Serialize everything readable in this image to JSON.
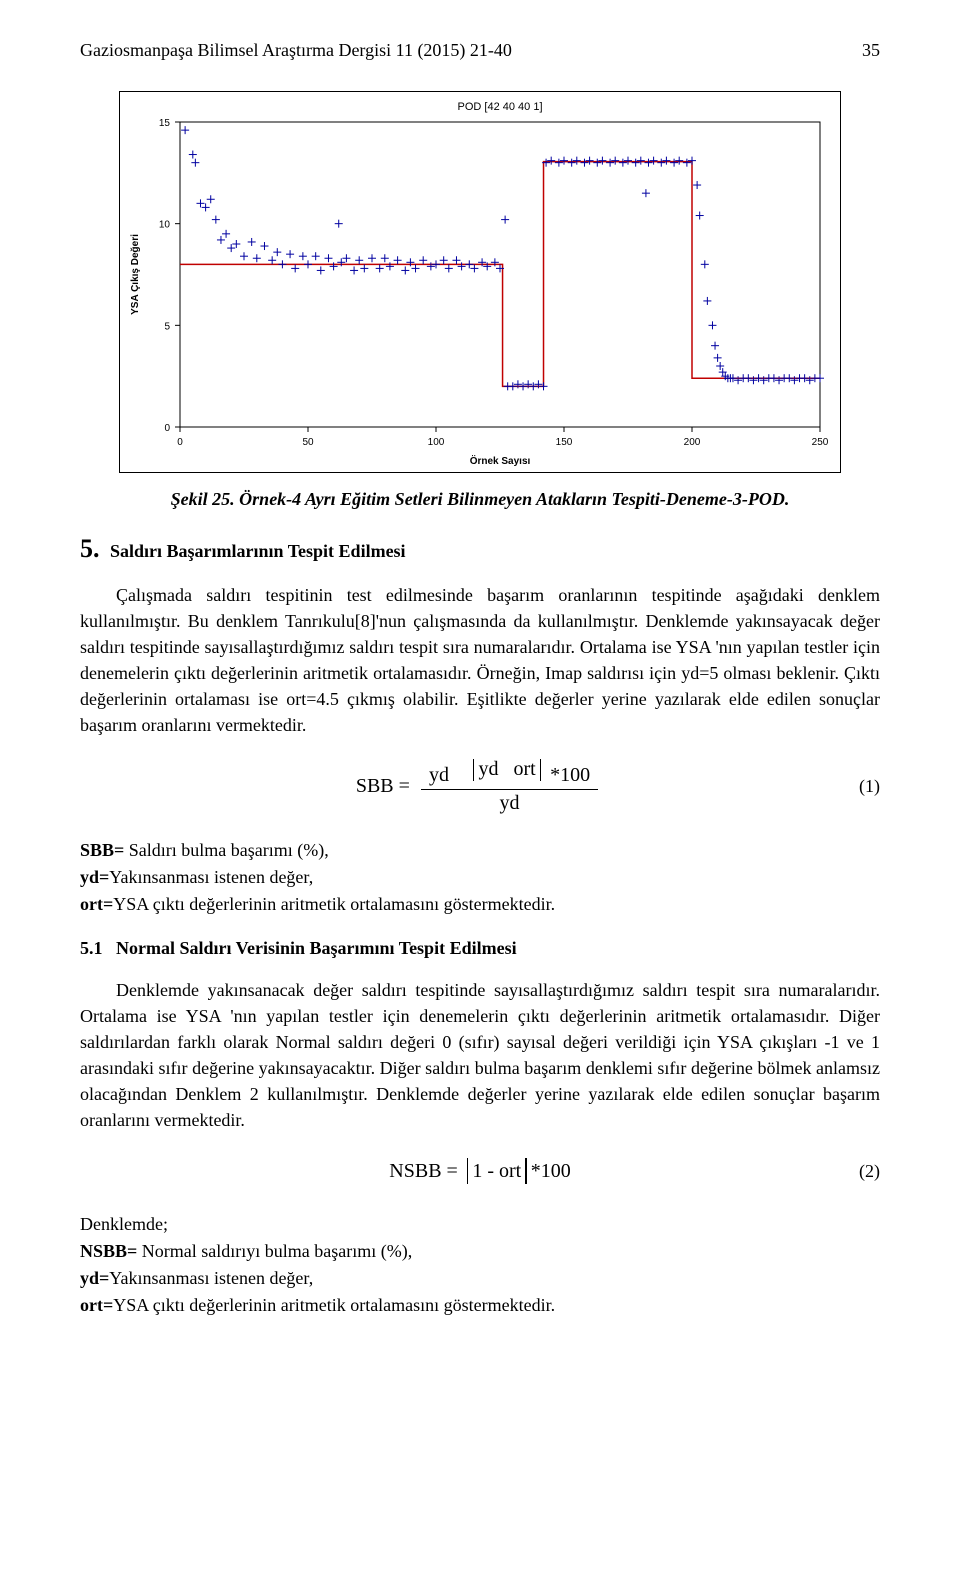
{
  "header": {
    "journal": "Gaziosmanpaşa Bilimsel Araştırma Dergisi 11 (2015) 21-40",
    "page_number": "35"
  },
  "chart": {
    "type": "scatter+step",
    "title": "POD [42 40 40 1]",
    "title_fontsize": 11,
    "xlabel": "Örnek Sayısı",
    "ylabel": "YSA Çıkış Değeri",
    "label_fontsize": 10,
    "xlim": [
      0,
      250
    ],
    "ylim": [
      0,
      15
    ],
    "xticks": [
      0,
      50,
      100,
      150,
      200,
      250
    ],
    "yticks": [
      0,
      5,
      10,
      15
    ],
    "background_color": "#ffffff",
    "axis_color": "#000000",
    "scatter_points": [
      [
        2,
        14.6
      ],
      [
        5,
        13.4
      ],
      [
        6,
        13.0
      ],
      [
        8,
        11.0
      ],
      [
        10,
        10.8
      ],
      [
        12,
        11.2
      ],
      [
        14,
        10.2
      ],
      [
        16,
        9.2
      ],
      [
        18,
        9.5
      ],
      [
        20,
        8.8
      ],
      [
        22,
        9.0
      ],
      [
        25,
        8.4
      ],
      [
        28,
        9.1
      ],
      [
        30,
        8.3
      ],
      [
        33,
        8.9
      ],
      [
        36,
        8.2
      ],
      [
        38,
        8.6
      ],
      [
        40,
        8.0
      ],
      [
        43,
        8.5
      ],
      [
        45,
        7.8
      ],
      [
        48,
        8.4
      ],
      [
        50,
        8.0
      ],
      [
        53,
        8.4
      ],
      [
        55,
        7.7
      ],
      [
        58,
        8.3
      ],
      [
        60,
        7.9
      ],
      [
        62,
        10.0
      ],
      [
        63,
        8.1
      ],
      [
        65,
        8.3
      ],
      [
        68,
        7.7
      ],
      [
        70,
        8.2
      ],
      [
        72,
        7.8
      ],
      [
        75,
        8.3
      ],
      [
        78,
        7.8
      ],
      [
        80,
        8.3
      ],
      [
        82,
        7.9
      ],
      [
        85,
        8.2
      ],
      [
        88,
        7.7
      ],
      [
        90,
        8.1
      ],
      [
        92,
        7.8
      ],
      [
        95,
        8.2
      ],
      [
        98,
        7.9
      ],
      [
        100,
        8.0
      ],
      [
        103,
        8.2
      ],
      [
        105,
        7.8
      ],
      [
        108,
        8.2
      ],
      [
        110,
        7.9
      ],
      [
        113,
        8.0
      ],
      [
        115,
        7.8
      ],
      [
        118,
        8.1
      ],
      [
        120,
        7.9
      ],
      [
        123,
        8.1
      ],
      [
        125,
        7.8
      ],
      [
        127,
        10.2
      ],
      [
        128,
        2.0
      ],
      [
        130,
        2.0
      ],
      [
        132,
        2.1
      ],
      [
        134,
        2.0
      ],
      [
        136,
        2.1
      ],
      [
        138,
        2.0
      ],
      [
        140,
        2.1
      ],
      [
        142,
        2.0
      ],
      [
        143,
        13.0
      ],
      [
        145,
        13.1
      ],
      [
        148,
        13.0
      ],
      [
        150,
        13.1
      ],
      [
        153,
        13.0
      ],
      [
        155,
        13.1
      ],
      [
        158,
        13.0
      ],
      [
        160,
        13.1
      ],
      [
        163,
        13.0
      ],
      [
        165,
        13.1
      ],
      [
        168,
        13.0
      ],
      [
        170,
        13.1
      ],
      [
        173,
        13.0
      ],
      [
        175,
        13.1
      ],
      [
        178,
        13.0
      ],
      [
        180,
        13.1
      ],
      [
        182,
        11.5
      ],
      [
        183,
        13.0
      ],
      [
        185,
        13.1
      ],
      [
        188,
        13.0
      ],
      [
        190,
        13.1
      ],
      [
        193,
        13.0
      ],
      [
        195,
        13.1
      ],
      [
        198,
        13.0
      ],
      [
        200,
        13.1
      ],
      [
        202,
        11.9
      ],
      [
        203,
        10.4
      ],
      [
        205,
        8.0
      ],
      [
        206,
        6.2
      ],
      [
        208,
        5.0
      ],
      [
        209,
        4.0
      ],
      [
        210,
        3.4
      ],
      [
        211,
        3.0
      ],
      [
        212,
        2.7
      ],
      [
        213,
        2.5
      ],
      [
        214,
        2.4
      ],
      [
        215,
        2.4
      ],
      [
        216,
        2.4
      ],
      [
        218,
        2.3
      ],
      [
        220,
        2.4
      ],
      [
        222,
        2.4
      ],
      [
        224,
        2.3
      ],
      [
        226,
        2.4
      ],
      [
        228,
        2.3
      ],
      [
        230,
        2.4
      ],
      [
        232,
        2.4
      ],
      [
        234,
        2.3
      ],
      [
        236,
        2.4
      ],
      [
        238,
        2.4
      ],
      [
        240,
        2.3
      ],
      [
        242,
        2.4
      ],
      [
        244,
        2.4
      ],
      [
        246,
        2.3
      ],
      [
        248,
        2.4
      ],
      [
        250,
        2.4
      ]
    ],
    "marker_color": "#0000a0",
    "marker_symbol": "+",
    "marker_size": 8,
    "step_line": [
      [
        0,
        8.0
      ],
      [
        126,
        8.0
      ],
      [
        126,
        2.0
      ],
      [
        142,
        2.0
      ],
      [
        142,
        13.05
      ],
      [
        200,
        13.05
      ],
      [
        200,
        2.4
      ],
      [
        250,
        2.4
      ]
    ],
    "line_color": "#c00000",
    "line_width": 1.5
  },
  "figure_caption": "Şekil 25. Örnek-4 Ayrı Eğitim Setleri Bilinmeyen Atakların Tespiti-Deneme-3-POD.",
  "section5": {
    "number": "5.",
    "title": "Saldırı Başarımlarının Tespit Edilmesi",
    "para": "Çalışmada saldırı tespitinin test edilmesinde başarım oranlarının tespitinde aşağıdaki denklem kullanılmıştır. Bu denklem Tanrıkulu[8]'nun çalışmasında da kullanılmıştır. Denklemde yakınsayacak değer saldırı tespitinde sayısallaştırdığımız saldırı tespit sıra numaralarıdır. Ortalama ise YSA 'nın yapılan testler için denemelerin çıktı değerlerinin aritmetik ortalamasıdır. Örneğin, Imap saldırısı için yd=5 olması beklenir.   Çıktı değerlerinin ortalaması ise ort=4.5 çıkmış olabilir. Eşitlikte değerler yerine yazılarak elde edilen sonuçlar başarım oranlarını vermektedir."
  },
  "eq1": {
    "lhs": "SBB",
    "num_left": "yd",
    "num_mid": "yd",
    "num_right": "ort",
    "mult": "*100",
    "den": "yd",
    "tag": "(1)"
  },
  "defs1": {
    "l1_label": "SBB=",
    "l1_text": " Saldırı bulma başarımı (%),",
    "l2_label": "yd=",
    "l2_text": "Yakınsanması istenen değer,",
    "l3_label": "ort=",
    "l3_text": "YSA çıktı değerlerinin aritmetik ortalamasını göstermektedir."
  },
  "section51": {
    "number": "5.1",
    "title": "Normal Saldırı Verisinin Başarımını Tespit Edilmesi",
    "para": "Denklemde yakınsanacak değer saldırı tespitinde sayısallaştırdığımız saldırı tespit sıra numaralarıdır.  Ortalama ise YSA 'nın yapılan testler için denemelerin çıktı değerlerinin aritmetik ortalamasıdır. Diğer saldırılardan farklı olarak Normal saldırı değeri 0 (sıfır) sayısal değeri verildiği için YSA çıkışları -1 ve 1 arasındaki sıfır değerine yakınsayacaktır.  Diğer saldırı bulma başarım denklemi sıfır değerine bölmek anlamsız olacağından Denklem 2 kullanılmıştır.  Denklemde değerler yerine yazılarak elde edilen sonuçlar başarım oranlarını vermektedir."
  },
  "eq2": {
    "lhs": "NSBB",
    "inner_left": "1 -",
    "inner_right": "ort",
    "mult": "*100",
    "tag": "(2)"
  },
  "defs2": {
    "pre": "Denklemde;",
    "l1_label": "NSBB=",
    "l1_text": " Normal saldırıyı bulma başarımı (%),",
    "l2_label": "yd=",
    "l2_text": "Yakınsanması istenen değer,",
    "l3_label": "ort=",
    "l3_text": "YSA çıktı değerlerinin aritmetik ortalamasını göstermektedir."
  }
}
